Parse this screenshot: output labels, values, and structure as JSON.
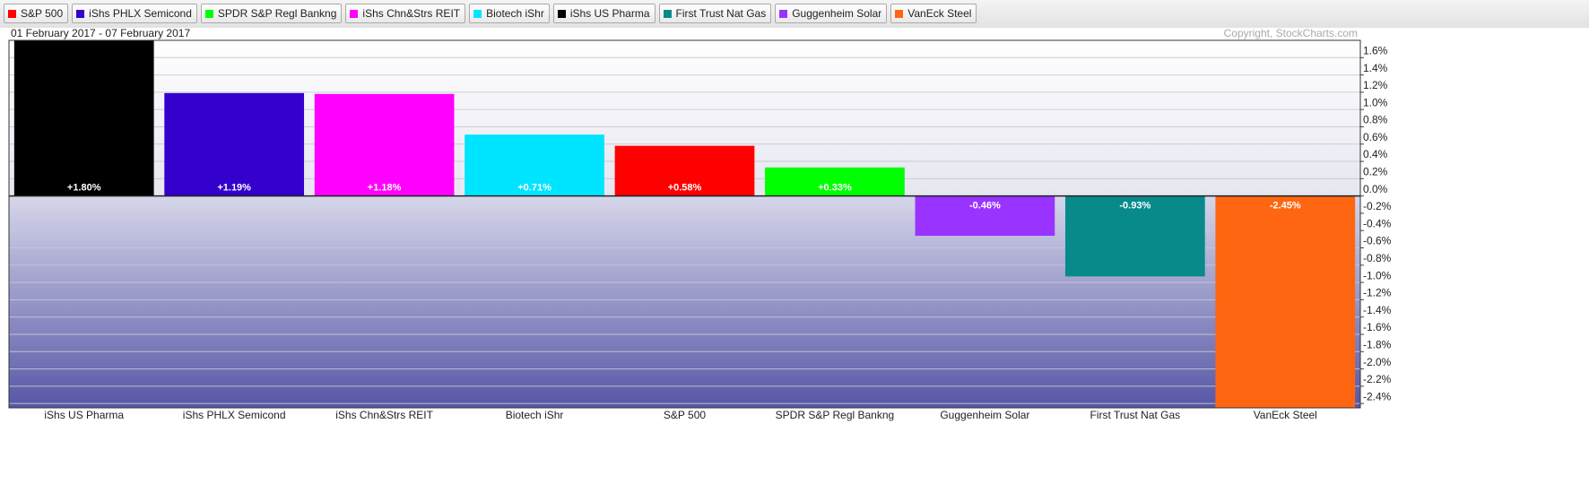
{
  "chart_data": {
    "type": "bar",
    "date_range": "01 February 2017 - 07 February 2017",
    "copyright": "Copyright, StockCharts.com",
    "legend": [
      {
        "name": "S&P 500",
        "color": "#ff0000"
      },
      {
        "name": "iShs PHLX Semicond",
        "color": "#3300cc"
      },
      {
        "name": "SPDR S&P Regl Bankng",
        "color": "#00ff00"
      },
      {
        "name": "iShs Chn&Strs REIT",
        "color": "#ff00ff"
      },
      {
        "name": "Biotech iShr",
        "color": "#00e5ff"
      },
      {
        "name": "iShs US Pharma",
        "color": "#000000"
      },
      {
        "name": "First Trust Nat Gas",
        "color": "#088a8a"
      },
      {
        "name": "Guggenheim Solar",
        "color": "#9933ff"
      },
      {
        "name": "VanEck Steel",
        "color": "#ff6611"
      }
    ],
    "categories": [
      "iShs US Pharma",
      "iShs PHLX Semicond",
      "iShs Chn&Strs REIT",
      "Biotech iShr",
      "S&P 500",
      "SPDR S&P Regl Bankng",
      "Guggenheim Solar",
      "First Trust Nat Gas",
      "VanEck Steel"
    ],
    "values": [
      1.8,
      1.19,
      1.18,
      0.71,
      0.58,
      0.33,
      -0.46,
      -0.93,
      -2.45
    ],
    "value_labels": [
      "+1.80%",
      "+1.19%",
      "+1.18%",
      "+0.71%",
      "+0.58%",
      "+0.33%",
      "-0.46%",
      "-0.93%",
      "-2.45%"
    ],
    "colors": [
      "#000000",
      "#3300cc",
      "#ff00ff",
      "#00e5ff",
      "#ff0000",
      "#00ff00",
      "#9933ff",
      "#088a8a",
      "#ff6611"
    ],
    "ylim": [
      -2.45,
      1.8
    ],
    "yticks": [
      {
        "value": 1.6,
        "label": "1.6%"
      },
      {
        "value": 1.4,
        "label": "1.4%"
      },
      {
        "value": 1.2,
        "label": "1.2%"
      },
      {
        "value": 1.0,
        "label": "1.0%"
      },
      {
        "value": 0.8,
        "label": "0.8%"
      },
      {
        "value": 0.6,
        "label": "0.6%"
      },
      {
        "value": 0.4,
        "label": "0.4%"
      },
      {
        "value": 0.2,
        "label": "0.2%"
      },
      {
        "value": 0.0,
        "label": "0.0%"
      },
      {
        "value": -0.2,
        "label": "-0.2%"
      },
      {
        "value": -0.4,
        "label": "-0.4%"
      },
      {
        "value": -0.6,
        "label": "-0.6%"
      },
      {
        "value": -0.8,
        "label": "-0.8%"
      },
      {
        "value": -1.0,
        "label": "-1.0%"
      },
      {
        "value": -1.2,
        "label": "-1.2%"
      },
      {
        "value": -1.4,
        "label": "-1.4%"
      },
      {
        "value": -1.6,
        "label": "-1.6%"
      },
      {
        "value": -1.8,
        "label": "-1.8%"
      },
      {
        "value": -2.0,
        "label": "-2.0%"
      },
      {
        "value": -2.2,
        "label": "-2.2%"
      },
      {
        "value": -2.4,
        "label": "-2.4%"
      }
    ],
    "grid": true
  }
}
